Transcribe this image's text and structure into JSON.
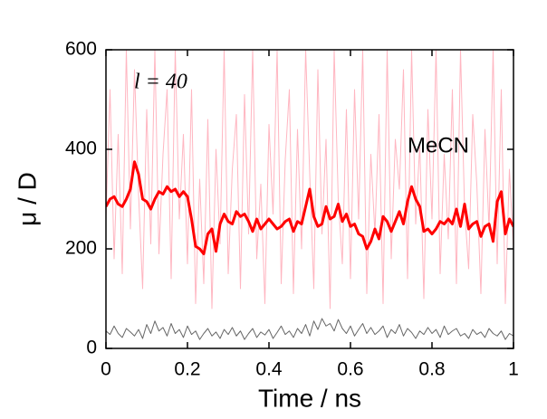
{
  "chart_data": {
    "type": "line",
    "xlabel": "Time / ns",
    "ylabel": "μ / D",
    "annotations": [
      {
        "text": "l = 40"
      },
      {
        "text": "MeCN",
        "color": "#ff0000"
      }
    ],
    "xlim": [
      0,
      1
    ],
    "xticks": [
      0,
      0.2,
      0.4,
      0.6,
      0.8,
      1
    ],
    "ylim": [
      0,
      600
    ],
    "yticks": [
      0,
      200,
      400,
      600
    ],
    "x": [
      0,
      0.01,
      0.02,
      0.03,
      0.04,
      0.05,
      0.06,
      0.07,
      0.08,
      0.09,
      0.1,
      0.11,
      0.12,
      0.13,
      0.14,
      0.15,
      0.16,
      0.17,
      0.18,
      0.19,
      0.2,
      0.21,
      0.22,
      0.23,
      0.24,
      0.25,
      0.26,
      0.27,
      0.28,
      0.29,
      0.3,
      0.31,
      0.32,
      0.33,
      0.34,
      0.35,
      0.36,
      0.37,
      0.38,
      0.39,
      0.4,
      0.41,
      0.42,
      0.43,
      0.44,
      0.45,
      0.46,
      0.47,
      0.48,
      0.49,
      0.5,
      0.51,
      0.52,
      0.53,
      0.54,
      0.55,
      0.56,
      0.57,
      0.58,
      0.59,
      0.6,
      0.61,
      0.62,
      0.63,
      0.64,
      0.65,
      0.66,
      0.67,
      0.68,
      0.69,
      0.7,
      0.71,
      0.72,
      0.73,
      0.74,
      0.75,
      0.76,
      0.77,
      0.78,
      0.79,
      0.8,
      0.81,
      0.82,
      0.83,
      0.84,
      0.85,
      0.86,
      0.87,
      0.88,
      0.89,
      0.9,
      0.91,
      0.92,
      0.93,
      0.94,
      0.95,
      0.96,
      0.97,
      0.98,
      0.99,
      1
    ],
    "series": [
      {
        "color": "#ffb6c1",
        "width": 1,
        "values": [
          260,
          520,
          180,
          430,
          150,
          600,
          240,
          560,
          310,
          120,
          480,
          210,
          600,
          190,
          390,
          520,
          140,
          600,
          260,
          430,
          170,
          520,
          90,
          340,
          130,
          460,
          80,
          400,
          210,
          600,
          150,
          360,
          470,
          120,
          510,
          230,
          600,
          180,
          330,
          90,
          450,
          270,
          600,
          130,
          380,
          520,
          110,
          440,
          200,
          600,
          350,
          120,
          560,
          230,
          420,
          80,
          600,
          300,
          170,
          480,
          140,
          520,
          260,
          600,
          110,
          390,
          230,
          470,
          90,
          600,
          180,
          420,
          320,
          560,
          140,
          600,
          250,
          410,
          100,
          480,
          260,
          600,
          150,
          390,
          220,
          520,
          130,
          600,
          280,
          160,
          470,
          330,
          110,
          440,
          240,
          600,
          170,
          520,
          90,
          360,
          200
        ]
      },
      {
        "name": "MeCN",
        "color": "#ff0000",
        "width": 3,
        "values": [
          285,
          300,
          305,
          290,
          285,
          300,
          320,
          375,
          350,
          300,
          295,
          280,
          300,
          315,
          310,
          325,
          315,
          320,
          305,
          315,
          305,
          260,
          205,
          200,
          190,
          230,
          240,
          195,
          250,
          270,
          255,
          250,
          275,
          265,
          270,
          255,
          235,
          260,
          240,
          250,
          260,
          250,
          240,
          245,
          255,
          260,
          235,
          255,
          250,
          285,
          320,
          265,
          245,
          250,
          285,
          260,
          265,
          290,
          255,
          270,
          245,
          250,
          230,
          225,
          200,
          215,
          240,
          220,
          265,
          255,
          235,
          255,
          275,
          250,
          295,
          325,
          300,
          285,
          235,
          240,
          230,
          240,
          255,
          250,
          260,
          250,
          280,
          245,
          290,
          240,
          250,
          255,
          225,
          245,
          250,
          215,
          295,
          315,
          230,
          260,
          245
        ]
      },
      {
        "color": "#666666",
        "width": 1,
        "values": [
          35,
          28,
          45,
          30,
          22,
          40,
          33,
          25,
          38,
          20,
          48,
          30,
          55,
          35,
          42,
          25,
          50,
          30,
          38,
          22,
          45,
          28,
          35,
          18,
          30,
          40,
          25,
          33,
          20,
          38,
          28,
          42,
          25,
          35,
          18,
          30,
          40,
          22,
          33,
          27,
          38,
          20,
          32,
          45,
          28,
          35,
          22,
          40,
          30,
          48,
          25,
          55,
          38,
          60,
          45,
          50,
          35,
          58,
          40,
          30,
          45,
          25,
          38,
          50,
          30,
          42,
          28,
          35,
          45,
          22,
          38,
          30,
          48,
          25,
          40,
          32,
          20,
          35,
          28,
          42,
          30,
          38,
          22,
          45,
          28,
          35,
          40,
          25,
          30,
          20,
          38,
          28,
          33,
          22,
          40,
          30,
          25,
          35,
          18,
          30,
          25
        ]
      }
    ]
  }
}
